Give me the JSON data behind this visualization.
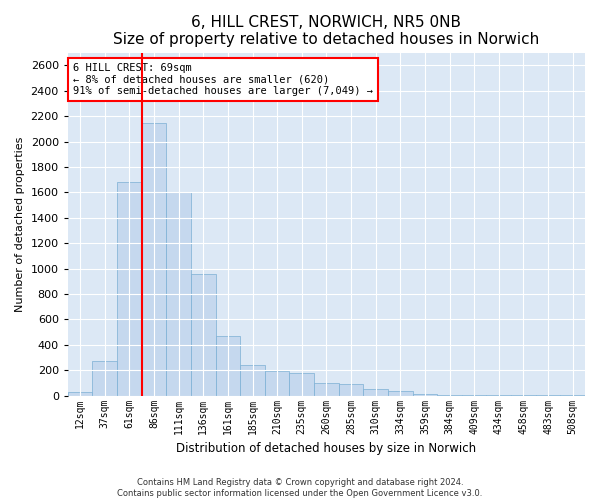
{
  "title": "6, HILL CREST, NORWICH, NR5 0NB",
  "subtitle": "Size of property relative to detached houses in Norwich",
  "xlabel": "Distribution of detached houses by size in Norwich",
  "ylabel": "Number of detached properties",
  "categories": [
    "12sqm",
    "37sqm",
    "61sqm",
    "86sqm",
    "111sqm",
    "136sqm",
    "161sqm",
    "185sqm",
    "210sqm",
    "235sqm",
    "260sqm",
    "285sqm",
    "310sqm",
    "334sqm",
    "359sqm",
    "384sqm",
    "409sqm",
    "434sqm",
    "458sqm",
    "483sqm",
    "508sqm"
  ],
  "values": [
    25,
    270,
    1680,
    2150,
    1600,
    960,
    470,
    240,
    195,
    175,
    100,
    90,
    50,
    40,
    15,
    8,
    5,
    5,
    3,
    2,
    2
  ],
  "bar_color": "#c5d8ee",
  "bar_edge_color": "#7aafd4",
  "property_line_color": "red",
  "annotation_text": "6 HILL CREST: 69sqm\n← 8% of detached houses are smaller (620)\n91% of semi-detached houses are larger (7,049) →",
  "annotation_box_color": "white",
  "annotation_box_edge_color": "red",
  "footer_line1": "Contains HM Land Registry data © Crown copyright and database right 2024.",
  "footer_line2": "Contains public sector information licensed under the Open Government Licence v3.0.",
  "ylim": [
    0,
    2700
  ],
  "yticks": [
    0,
    200,
    400,
    600,
    800,
    1000,
    1200,
    1400,
    1600,
    1800,
    2000,
    2200,
    2400,
    2600
  ],
  "background_color": "#dce8f5",
  "plot_background_color": "#dce8f5",
  "title_fontsize": 11,
  "subtitle_fontsize": 9
}
